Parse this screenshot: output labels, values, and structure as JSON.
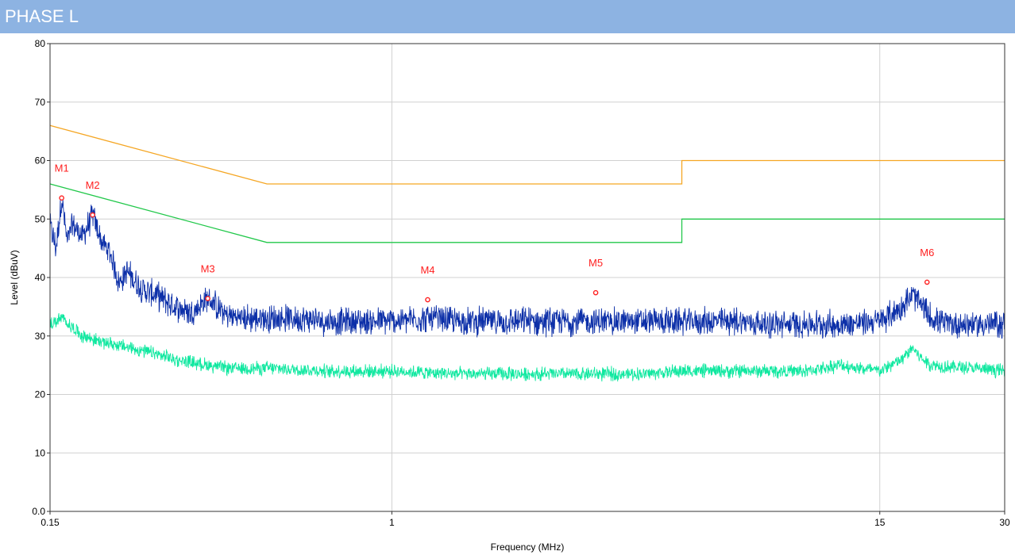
{
  "header": {
    "title": "PHASE L"
  },
  "colors": {
    "header_bg": "#8db3e2",
    "qp_limit": "#f5a623",
    "avg_limit": "#21c84a",
    "peak_trace": "#0c2fa8",
    "avg_trace": "#10e8a0",
    "marker": "#ff2020",
    "grid": "#d0d0d0"
  },
  "chart_data": {
    "type": "line",
    "title": "",
    "xlabel": "Frequency (MHz)",
    "ylabel": "Level (dBuV)",
    "x_scale": "log",
    "xlim": [
      0.15,
      30
    ],
    "ylim": [
      0,
      80
    ],
    "x_ticks": [
      {
        "value": 0.15,
        "label": "0.15"
      },
      {
        "value": 1,
        "label": "1"
      },
      {
        "value": 15,
        "label": "15"
      },
      {
        "value": 30,
        "label": "30"
      }
    ],
    "y_ticks": [
      {
        "value": 0,
        "label": "0.0"
      },
      {
        "value": 10,
        "label": "10"
      },
      {
        "value": 20,
        "label": "20"
      },
      {
        "value": 30,
        "label": "30"
      },
      {
        "value": 40,
        "label": "40"
      },
      {
        "value": 50,
        "label": "50"
      },
      {
        "value": 60,
        "label": "60"
      },
      {
        "value": 70,
        "label": "70"
      },
      {
        "value": 80,
        "label": "80"
      }
    ],
    "grid": true,
    "limit_lines": [
      {
        "color": "#f5a623",
        "x": [
          0.15,
          0.5,
          5,
          5,
          30
        ],
        "y": [
          66,
          56,
          56,
          60,
          60
        ]
      },
      {
        "color": "#21c84a",
        "x": [
          0.15,
          0.5,
          5,
          5,
          30
        ],
        "y": [
          56,
          46,
          46,
          50,
          50
        ]
      }
    ],
    "traces": [
      {
        "color": "#0c2fa8",
        "x": [
          0.15,
          0.155,
          0.16,
          0.165,
          0.17,
          0.18,
          0.19,
          0.2,
          0.21,
          0.22,
          0.23,
          0.25,
          0.27,
          0.3,
          0.33,
          0.36,
          0.4,
          0.45,
          0.5,
          0.6,
          0.7,
          0.8,
          1,
          1.2,
          1.5,
          2,
          2.5,
          3,
          4,
          5,
          6,
          7,
          8,
          10,
          12,
          15,
          17,
          18,
          19,
          20,
          22,
          25,
          30
        ],
        "y": [
          49,
          45,
          53.6,
          46,
          49,
          47,
          50.7,
          46,
          44,
          39,
          41,
          38,
          37,
          35,
          34,
          36.4,
          33.5,
          33,
          33,
          33,
          32.5,
          32.5,
          32.5,
          33,
          32.5,
          32.5,
          32.5,
          32.5,
          32.5,
          32.5,
          32.5,
          32.5,
          32,
          32,
          32,
          32.5,
          35,
          37,
          35,
          33,
          32,
          32,
          32
        ],
        "noise": 2
      },
      {
        "color": "#10e8a0",
        "x": [
          0.15,
          0.16,
          0.18,
          0.2,
          0.25,
          0.3,
          0.4,
          0.5,
          0.7,
          1,
          1.5,
          2,
          3,
          4,
          5,
          7,
          10,
          12,
          15,
          17,
          18,
          19,
          20,
          25,
          30
        ],
        "y": [
          32,
          33,
          30,
          29,
          27.5,
          26,
          24.5,
          24.5,
          24,
          24,
          23.5,
          23.5,
          23.5,
          23.5,
          24,
          24,
          24,
          25,
          24,
          26,
          28,
          26,
          25,
          24.5,
          24
        ],
        "noise": 1
      }
    ],
    "markers": [
      {
        "label": "M1",
        "x": 0.16,
        "y": 53.6
      },
      {
        "label": "M2",
        "x": 0.19,
        "y": 50.7
      },
      {
        "label": "M3",
        "x": 0.36,
        "y": 36.4
      },
      {
        "label": "M4",
        "x": 1.22,
        "y": 36.2
      },
      {
        "label": "M5",
        "x": 3.1,
        "y": 37.4
      },
      {
        "label": "M6",
        "x": 19.5,
        "y": 39.2
      }
    ]
  }
}
